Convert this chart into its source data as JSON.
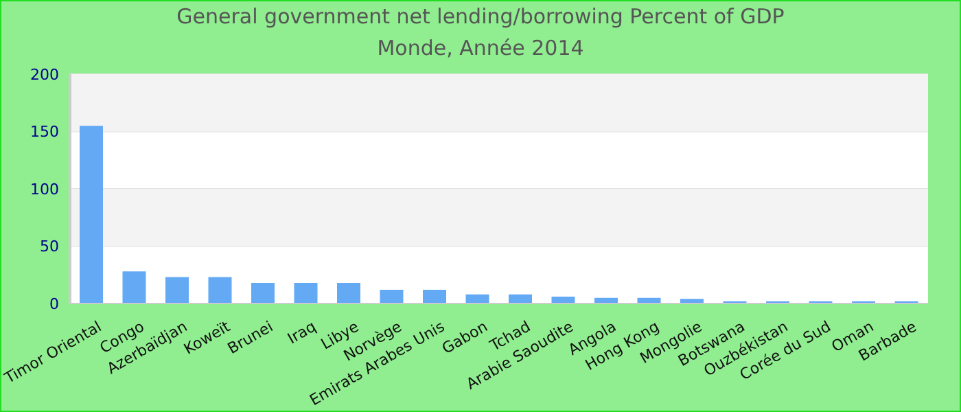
{
  "chart_data": {
    "type": "bar",
    "title": "General government net lending/borrowing  Percent of GDP",
    "subtitle": "Monde, Année 2014",
    "categories": [
      "Timor Oriental",
      "Congo",
      "Azerbaïdjan",
      "Koweït",
      "Brunei",
      "Iraq",
      "Libye",
      "Norvège",
      "Emirats Arabes Unis",
      "Gabon",
      "Tchad",
      "Arabie Saoudite",
      "Angola",
      "Hong Kong",
      "Mongolie",
      "Botswana",
      "Ouzbékistan",
      "Corée du Sud",
      "Oman",
      "Barbade"
    ],
    "values": [
      155,
      28,
      23,
      23,
      18,
      18,
      18,
      12,
      12,
      8,
      8,
      6,
      5,
      5,
      4,
      2,
      2,
      2,
      2,
      2
    ],
    "color": "#63a9f4",
    "ylim": [
      0,
      200
    ],
    "yticks": [
      0,
      50,
      100,
      150,
      200
    ],
    "grid": "y"
  }
}
